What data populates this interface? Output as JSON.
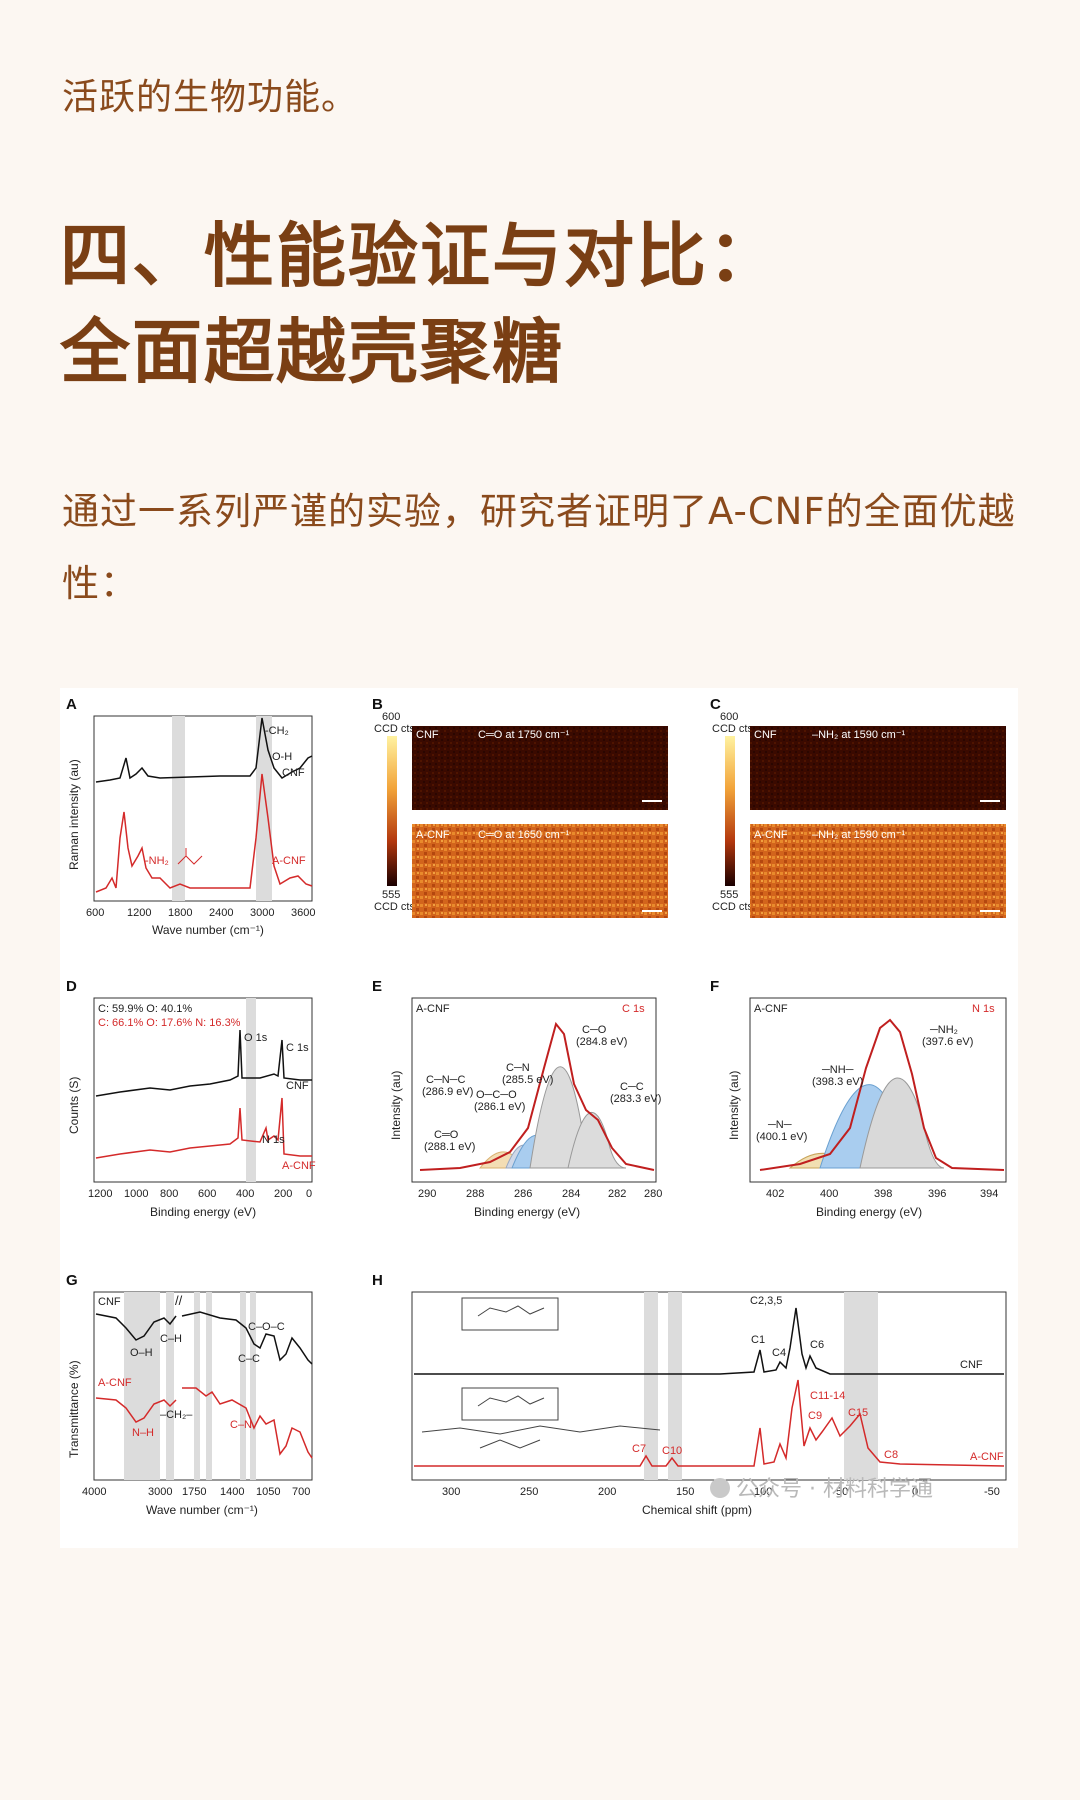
{
  "article": {
    "intro_text": "活跃的生物功能。",
    "heading_line1": "四、性能验证与对比：",
    "heading_line2": "全面超越壳聚糖",
    "paragraph": "通过一系列严谨的实验，研究者证明了A-CNF的全面优越性："
  },
  "figure": {
    "panels": {
      "A": {
        "letter": "A",
        "ylabel": "Raman intensity (au)",
        "xlabel": "Wave number (cm⁻¹)",
        "ticks": [
          "600",
          "1200",
          "1800",
          "2400",
          "3000",
          "3600"
        ],
        "ann_ch2": "-CH₂",
        "ann_oh": "O-H",
        "ann_nh2": "-NH₂",
        "series1": "CNF",
        "series2": "A-CNF"
      },
      "B": {
        "letter": "B",
        "cb_top": "600",
        "cb_bot": "555",
        "cb_unit": "CCD cts",
        "top_sample": "CNF",
        "top_label": "C═O at 1750 cm⁻¹",
        "bot_sample": "A-CNF",
        "bot_label": "C═O at 1650 cm⁻¹"
      },
      "C": {
        "letter": "C",
        "cb_top": "600",
        "cb_bot": "555",
        "cb_unit": "CCD cts",
        "top_sample": "CNF",
        "top_label": "–NH₂ at 1590 cm⁻¹",
        "bot_sample": "A-CNF",
        "bot_label": "–NH₂ at 1590 cm⁻¹"
      },
      "D": {
        "letter": "D",
        "ylabel": "Counts (S)",
        "xlabel": "Binding energy (eV)",
        "ticks": [
          "1200",
          "1000",
          "800",
          "600",
          "400",
          "200",
          "0"
        ],
        "comp1": "C: 59.9%  O: 40.1%",
        "comp2": "C: 66.1%  O: 17.6%  N: 16.3%",
        "ann_o1s": "O 1s",
        "ann_c1s": "C 1s",
        "ann_n1s": "N 1s",
        "series1": "CNF",
        "series2": "A-CNF"
      },
      "E": {
        "letter": "E",
        "sample": "A-CNF",
        "region": "C 1s",
        "ylabel": "Intensity (au)",
        "xlabel": "Binding energy (eV)",
        "ticks": [
          "290",
          "288",
          "286",
          "284",
          "282",
          "280"
        ],
        "p1a": "C─O",
        "p1b": "(284.8 eV)",
        "p2a": "C─N",
        "p2b": "(285.5 eV)",
        "p3a": "C─N─C",
        "p3b": "(286.9 eV)",
        "p4a": "O─C─O",
        "p4b": "(286.1 eV)",
        "p5a": "C═O",
        "p5b": "(288.1 eV)",
        "p6a": "C─C",
        "p6b": "(283.3 eV)"
      },
      "F": {
        "letter": "F",
        "sample": "A-CNF",
        "region": "N 1s",
        "ylabel": "Intensity (au)",
        "xlabel": "Binding energy (eV)",
        "ticks": [
          "402",
          "400",
          "398",
          "396",
          "394"
        ],
        "p1a": "─NH₂",
        "p1b": "(397.6 eV)",
        "p2a": "─NH─",
        "p2b": "(398.3 eV)",
        "p3a": "─N─",
        "p3b": "(400.1 eV)"
      },
      "G": {
        "letter": "G",
        "ylabel": "Transmittance (%)",
        "xlabel": "Wave number (cm⁻¹)",
        "ticks": [
          "4000",
          "3000",
          "1750",
          "1400",
          "1050",
          "700"
        ],
        "series1": "CNF",
        "series2": "A-CNF",
        "ann_oh": "O–H",
        "ann_ch": "C–H",
        "ann_coc": "C–O–C",
        "ann_cc": "C–C",
        "ann_nh": "N–H",
        "ann_ch2": "–CH₂–",
        "ann_cn": "C–N"
      },
      "H": {
        "letter": "H",
        "xlabel": "Chemical shift (ppm)",
        "ticks": [
          "300",
          "250",
          "200",
          "150",
          "100",
          "50",
          "0",
          "-50"
        ],
        "series1": "CNF",
        "series2": "A-CNF",
        "c1": "C1",
        "c4": "C4",
        "c235": "C2,3,5",
        "c6": "C6",
        "c7": "C7",
        "c10": "C10",
        "c9": "C9",
        "c1114": "C11-14",
        "c15": "C15",
        "c8": "C8"
      }
    },
    "watermark": "公众号 · 材料科学通"
  }
}
